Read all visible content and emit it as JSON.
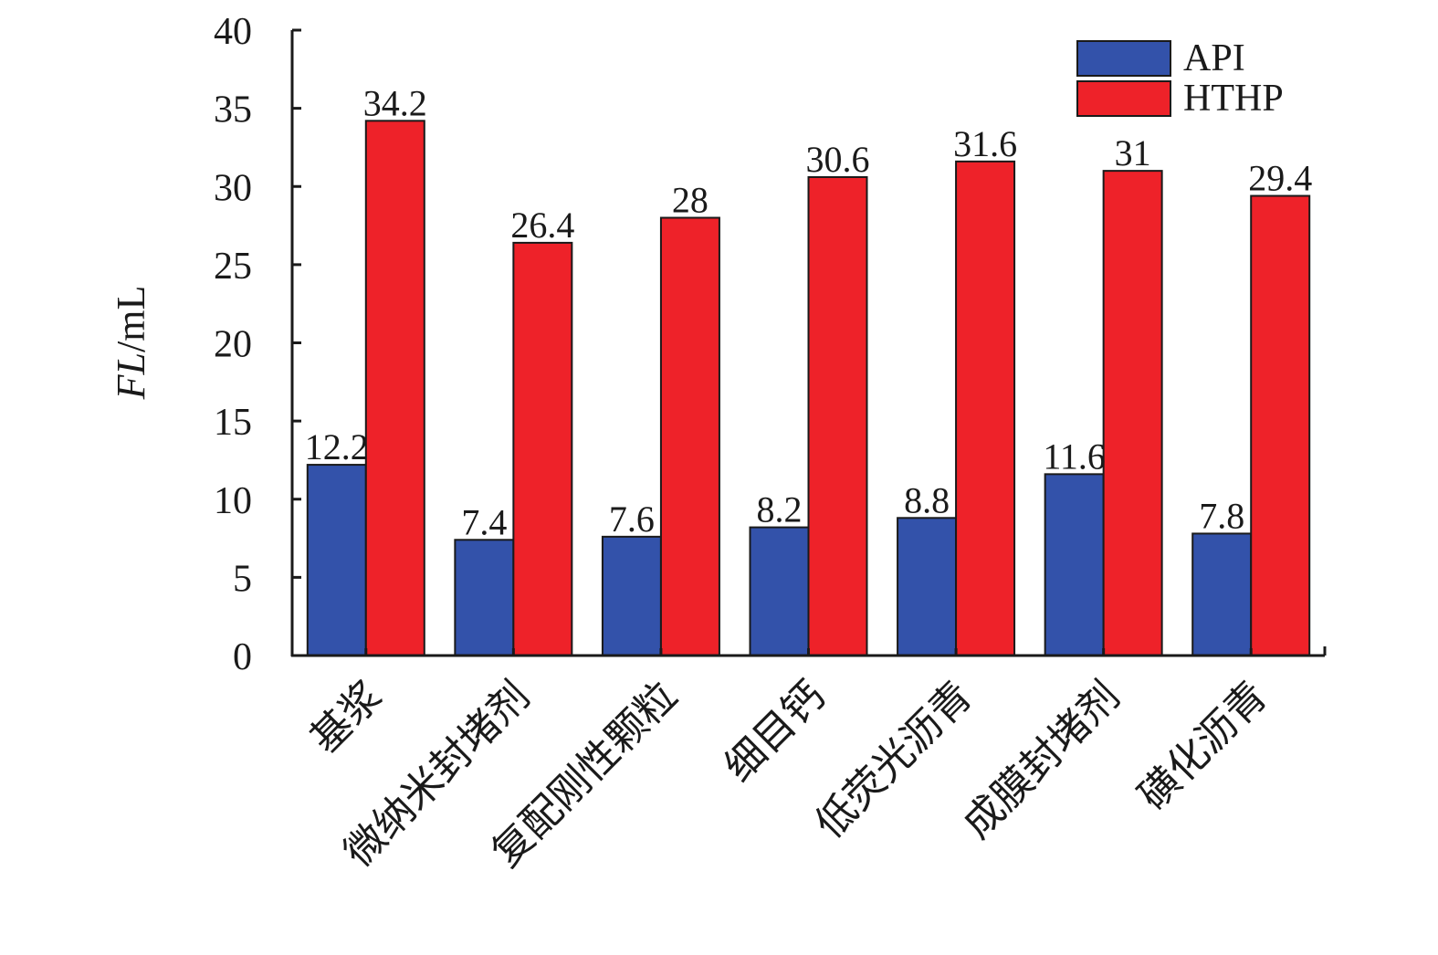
{
  "chart_data": {
    "type": "bar",
    "categories": [
      "基浆",
      "微纳米封堵剂",
      "复配刚性颗粒",
      "细目钙",
      "低荧光沥青",
      "成膜封堵剂",
      "磺化沥青"
    ],
    "series": [
      {
        "name": "API",
        "color": "#3352aa",
        "values": [
          12.2,
          7.4,
          7.6,
          8.2,
          8.8,
          11.6,
          7.8
        ]
      },
      {
        "name": "HTHP",
        "color": "#ee2229",
        "values": [
          34.2,
          26.4,
          28,
          30.6,
          31.6,
          31,
          29.4
        ]
      }
    ],
    "data_labels": [
      [
        "12.2",
        "7.4",
        "7.6",
        "8.2",
        "8.8",
        "11.6",
        "7.8"
      ],
      [
        "34.2",
        "26.4",
        "28",
        "30.6",
        "31.6",
        "31",
        "29.4"
      ]
    ],
    "title": "",
    "xlabel": "",
    "ylabel": {
      "italic": "FL",
      "unit": "/mL"
    },
    "ylim": [
      0,
      40
    ],
    "yticks": [
      "0",
      "5",
      "10",
      "15",
      "20",
      "25",
      "30",
      "35",
      "40"
    ],
    "grid": false,
    "legend_position": "top-right"
  }
}
